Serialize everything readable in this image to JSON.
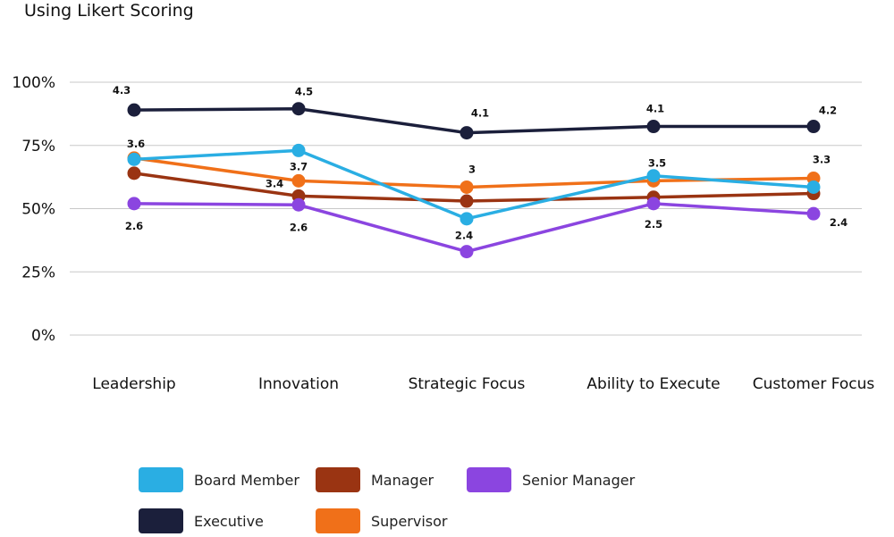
{
  "chart_data": {
    "type": "line",
    "title": "Using Likert Scoring",
    "categories": [
      "Leadership",
      "Innovation",
      "Strategic Focus",
      "Ability to Execute",
      "Customer Focus"
    ],
    "y_ticks": [
      "0%",
      "25%",
      "50%",
      "75%",
      "100%"
    ],
    "ylim": [
      0,
      100
    ],
    "grid": true,
    "legend_position": "bottom",
    "series": [
      {
        "name": "Executive",
        "color": "#1b1f3b",
        "values": [
          89,
          89.5,
          80,
          82.5,
          82.5
        ],
        "labels": [
          "4.3",
          "4.5",
          "4.1",
          "4.1",
          "4.2"
        ]
      },
      {
        "name": "Supervisor",
        "color": "#f07019",
        "values": [
          70,
          61,
          58.5,
          61,
          62
        ],
        "labels": [
          "3.6",
          "",
          "3",
          "",
          "3.3"
        ]
      },
      {
        "name": "Manager",
        "color": "#9a3412",
        "values": [
          64,
          55,
          53,
          54.5,
          56
        ],
        "labels": [
          "",
          "3.4",
          "",
          "",
          ""
        ]
      },
      {
        "name": "Board Member",
        "color": "#2aaee3",
        "values": [
          69.5,
          73,
          46,
          63,
          58.5
        ],
        "labels": [
          "",
          "3.7",
          "",
          "3.5",
          ""
        ]
      },
      {
        "name": "Senior Manager",
        "color": "#8b45e0",
        "values": [
          52,
          51.5,
          33,
          52,
          48
        ],
        "labels": [
          "2.6",
          "2.6",
          "2.4",
          "2.5",
          "2.4"
        ]
      }
    ]
  },
  "legend": [
    {
      "label": "Board Member",
      "color": "#2aaee3"
    },
    {
      "label": "Manager",
      "color": "#9a3412"
    },
    {
      "label": "Senior Manager",
      "color": "#8b45e0"
    },
    {
      "label": "Executive",
      "color": "#1b1f3b"
    },
    {
      "label": "Supervisor",
      "color": "#f07019"
    }
  ]
}
